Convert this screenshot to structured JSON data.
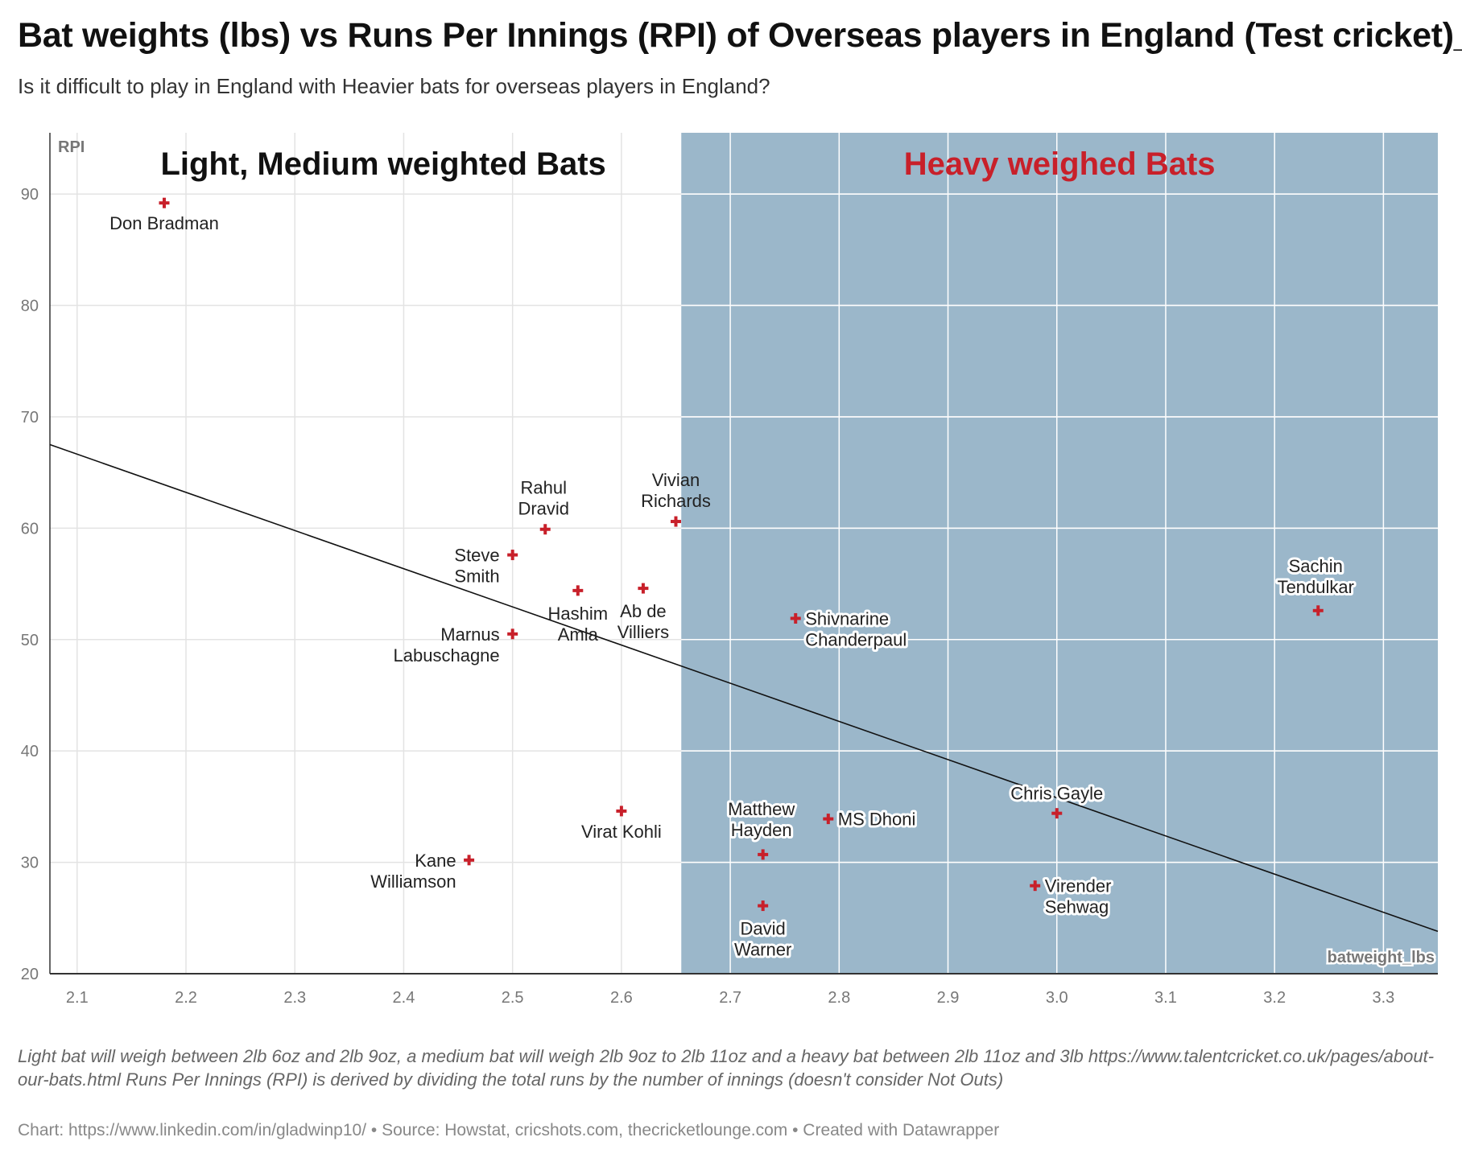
{
  "title": "Bat weights (lbs) vs Runs Per Innings (RPI) of Overseas players in England (Test cricket)_",
  "subtitle": "Is it difficult to play in England with Heavier bats for overseas players in England?",
  "notes": "Light bat will weigh between 2lb 6oz and 2lb 9oz, a medium bat will weigh 2lb 9oz to 2lb 11oz and a heavy bat between 2lb 11oz and 3lb https://www.talentcricket.co.uk/pages/about-our-bats.html Runs Per Innings (RPI) is derived by dividing the total runs by the number of innings (doesn't consider Not Outs)",
  "credit": "Chart: https://www.linkedin.com/in/gladwinp10/ • Source: Howstat, cricshots.com, thecricketlounge.com • Created with Datawrapper",
  "chart_data": {
    "type": "scatter",
    "xlabel": "batweight_lbs",
    "ylabel": "RPI",
    "xlim": [
      2.075,
      3.35
    ],
    "ylim": [
      20,
      95.5
    ],
    "xticks": [
      "2.1",
      "2.2",
      "2.3",
      "2.4",
      "2.5",
      "2.6",
      "2.7",
      "2.8",
      "2.9",
      "3.0",
      "3.1",
      "3.2",
      "3.3"
    ],
    "yticks": [
      "20",
      "30",
      "40",
      "50",
      "60",
      "70",
      "80",
      "90"
    ],
    "grid": true,
    "regions": [
      {
        "label": "Light, Medium weighted Bats",
        "x_from": 2.075,
        "x_to": 2.655,
        "color": "#ffffff",
        "label_color": "#111111"
      },
      {
        "label": "Heavy weighed Bats",
        "x_from": 2.655,
        "x_to": 3.35,
        "color": "#9bb7ca",
        "label_color": "#c8202a"
      }
    ],
    "points": [
      {
        "name": "Don Bradman",
        "x": 2.18,
        "y": 89.2
      },
      {
        "name": "Rahul Dravid",
        "x": 2.53,
        "y": 59.9
      },
      {
        "name": "Steve Smith",
        "x": 2.5,
        "y": 57.6
      },
      {
        "name": "Hashim Amla",
        "x": 2.56,
        "y": 54.4
      },
      {
        "name": "Ab de Villiers",
        "x": 2.62,
        "y": 54.6
      },
      {
        "name": "Marnus Labuschagne",
        "x": 2.5,
        "y": 50.5
      },
      {
        "name": "Vivian Richards",
        "x": 2.65,
        "y": 60.6
      },
      {
        "name": "Virat Kohli",
        "x": 2.6,
        "y": 34.6
      },
      {
        "name": "Kane Williamson",
        "x": 2.46,
        "y": 30.2
      },
      {
        "name": "Shivnarine Chanderpaul",
        "x": 2.76,
        "y": 51.9
      },
      {
        "name": "Matthew Hayden",
        "x": 2.73,
        "y": 30.7
      },
      {
        "name": "MS Dhoni",
        "x": 2.79,
        "y": 33.9
      },
      {
        "name": "David Warner",
        "x": 2.73,
        "y": 26.1
      },
      {
        "name": "Chris Gayle",
        "x": 3.0,
        "y": 34.4
      },
      {
        "name": "Virender Sehwag",
        "x": 2.98,
        "y": 27.9
      },
      {
        "name": "Sachin Tendulkar",
        "x": 3.24,
        "y": 52.6
      }
    ],
    "trendline": {
      "x": [
        2.075,
        3.35
      ],
      "y": [
        67.5,
        23.8
      ]
    },
    "point_color": "#c8202a"
  }
}
